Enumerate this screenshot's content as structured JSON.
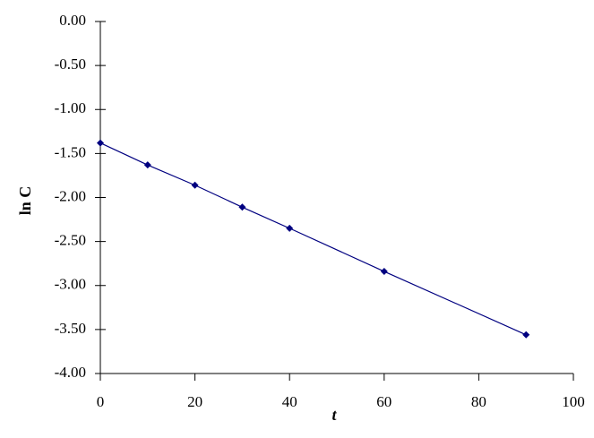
{
  "chart_data": {
    "type": "line",
    "x_label": "t",
    "y_label": "ln C",
    "x": [
      0,
      10,
      20,
      30,
      40,
      60,
      90
    ],
    "series": [
      {
        "name": "ln C",
        "color": "#000080",
        "values": [
          -1.38,
          -1.63,
          -1.86,
          -2.11,
          -2.35,
          -2.84,
          -3.56
        ]
      }
    ],
    "xlim": [
      0,
      100
    ],
    "xticks": [
      0,
      20,
      40,
      60,
      80,
      100
    ],
    "ylim": [
      -4,
      0
    ],
    "yticks": [
      {
        "value": 0,
        "label": "0.00"
      },
      {
        "value": -0.5,
        "label": "-0.50"
      },
      {
        "value": -1,
        "label": "-1.00"
      },
      {
        "value": -1.5,
        "label": "-1.50"
      },
      {
        "value": -2,
        "label": "-2.00"
      },
      {
        "value": -2.5,
        "label": "-2.50"
      },
      {
        "value": -3,
        "label": "-3.00"
      },
      {
        "value": -3.5,
        "label": "-3.50"
      },
      {
        "value": -4,
        "label": "-4.00"
      }
    ],
    "grid": false
  }
}
